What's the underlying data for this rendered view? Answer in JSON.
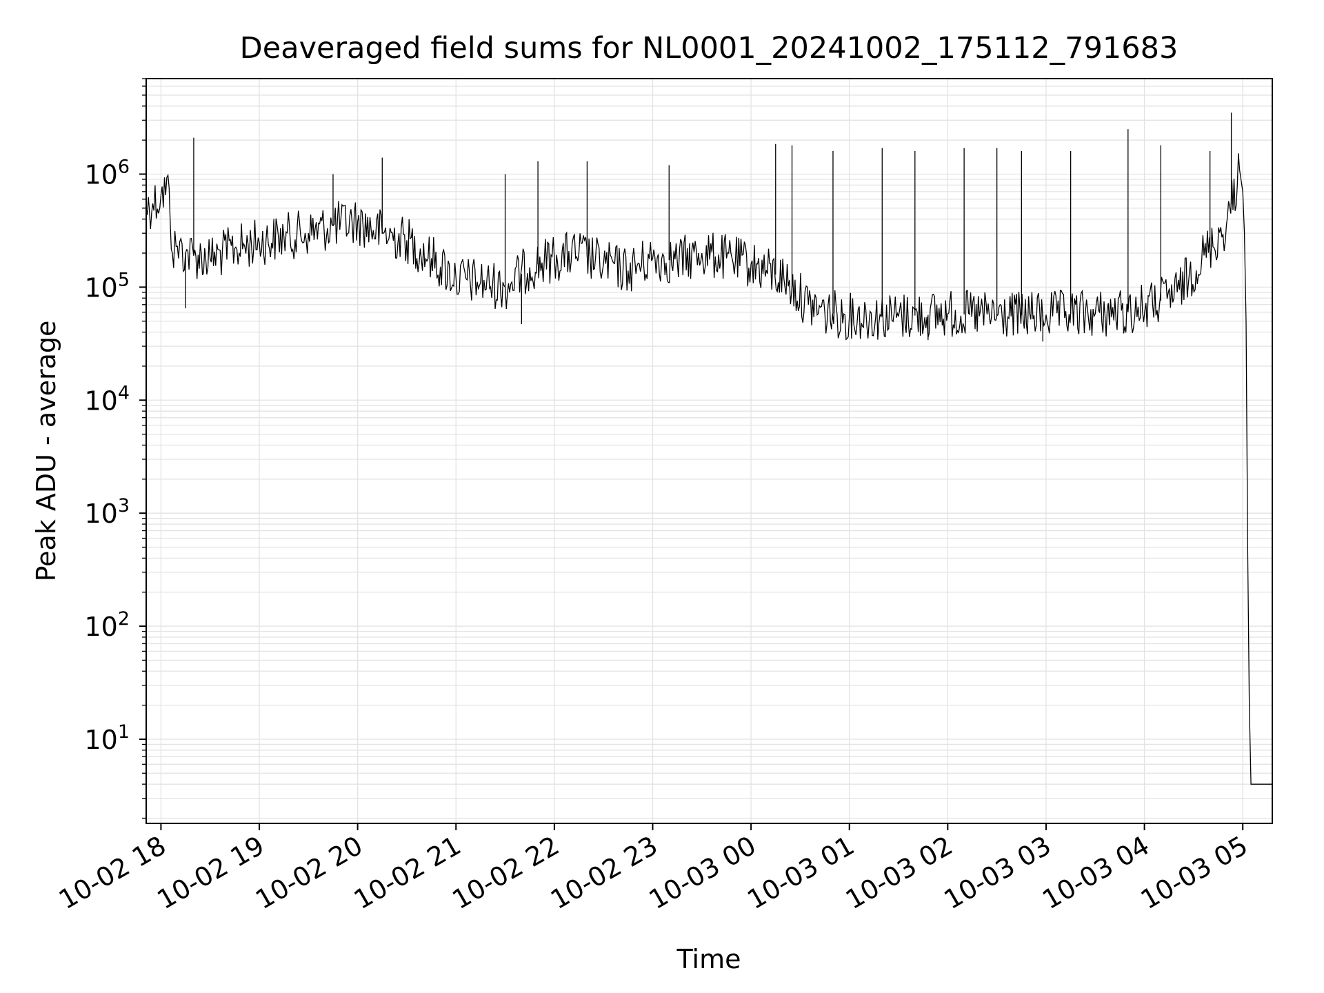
{
  "chart_data": {
    "type": "line",
    "title": "Deaveraged field sums for NL0001_20241002_175112_791683",
    "xlabel": "Time",
    "ylabel": "Peak ADU - average",
    "yscale": "log",
    "ylim": [
      1.8,
      7000000
    ],
    "xlim": [
      "2024-10-02 17:51",
      "2024-10-03 05:18"
    ],
    "grid": true,
    "legend": "none",
    "line_color": "#000000",
    "x_ticks": [
      "10-02 18",
      "10-02 19",
      "10-02 20",
      "10-02 21",
      "10-02 22",
      "10-02 23",
      "10-03 00",
      "10-03 01",
      "10-03 02",
      "10-03 03",
      "10-03 04",
      "10-03 05"
    ],
    "y_ticks": [
      {
        "base": "10",
        "exp": "1",
        "value": 10
      },
      {
        "base": "10",
        "exp": "2",
        "value": 100
      },
      {
        "base": "10",
        "exp": "3",
        "value": 1000
      },
      {
        "base": "10",
        "exp": "4",
        "value": 10000
      },
      {
        "base": "10",
        "exp": "5",
        "value": 100000
      },
      {
        "base": "10",
        "exp": "6",
        "value": 1000000
      }
    ],
    "series": [
      {
        "x": [
          "2024-10-02 17:51",
          "2024-10-02 17:55",
          "2024-10-02 18:00",
          "2024-10-02 18:05",
          "2024-10-02 18:07",
          "2024-10-02 18:10",
          "2024-10-02 18:15",
          "2024-10-02 18:20",
          "2024-10-02 18:30",
          "2024-10-02 18:45",
          "2024-10-02 19:00",
          "2024-10-02 19:15",
          "2024-10-02 19:30",
          "2024-10-02 19:45",
          "2024-10-02 20:00",
          "2024-10-02 20:15",
          "2024-10-02 20:30",
          "2024-10-02 20:45",
          "2024-10-02 21:00",
          "2024-10-02 21:15",
          "2024-10-02 21:30",
          "2024-10-02 21:45",
          "2024-10-02 22:00",
          "2024-10-02 22:15",
          "2024-10-02 22:30",
          "2024-10-02 22:45",
          "2024-10-02 23:00",
          "2024-10-02 23:15",
          "2024-10-02 23:30",
          "2024-10-02 23:45",
          "2024-10-03 00:00",
          "2024-10-03 00:20",
          "2024-10-03 00:35",
          "2024-10-03 00:45",
          "2024-10-03 01:00",
          "2024-10-03 01:30",
          "2024-10-03 02:00",
          "2024-10-03 02:30",
          "2024-10-03 03:00",
          "2024-10-03 03:30",
          "2024-10-03 03:50",
          "2024-10-03 04:05",
          "2024-10-03 04:20",
          "2024-10-03 04:35",
          "2024-10-03 04:50",
          "2024-10-03 04:58",
          "2024-10-03 05:00",
          "2024-10-03 05:01",
          "2024-10-03 05:02",
          "2024-10-03 05:03",
          "2024-10-03 05:04",
          "2024-10-03 05:05",
          "2024-10-03 05:06",
          "2024-10-03 05:18"
        ],
        "y": [
          500000,
          550000,
          650000,
          750000,
          200000,
          230000,
          200000,
          190000,
          180000,
          220000,
          250000,
          280000,
          300000,
          350000,
          380000,
          300000,
          260000,
          180000,
          120000,
          110000,
          100000,
          150000,
          180000,
          200000,
          160000,
          140000,
          180000,
          170000,
          200000,
          180000,
          160000,
          120000,
          70000,
          60000,
          55000,
          55000,
          58000,
          56000,
          57000,
          58000,
          60000,
          70000,
          90000,
          180000,
          350000,
          1100000,
          700000,
          300000,
          50000,
          500,
          20,
          4,
          4,
          4
        ],
        "spikes": [
          {
            "x": "2024-10-02 18:20",
            "y": 2100000
          },
          {
            "x": "2024-10-02 19:45",
            "y": 1000000
          },
          {
            "x": "2024-10-02 20:15",
            "y": 1400000
          },
          {
            "x": "2024-10-02 21:30",
            "y": 1000000
          },
          {
            "x": "2024-10-02 21:50",
            "y": 1300000
          },
          {
            "x": "2024-10-02 22:20",
            "y": 1300000
          },
          {
            "x": "2024-10-02 23:10",
            "y": 1200000
          },
          {
            "x": "2024-10-03 00:15",
            "y": 1850000
          },
          {
            "x": "2024-10-03 00:25",
            "y": 1800000
          },
          {
            "x": "2024-10-03 00:50",
            "y": 1600000
          },
          {
            "x": "2024-10-03 01:20",
            "y": 1700000
          },
          {
            "x": "2024-10-03 01:40",
            "y": 1600000
          },
          {
            "x": "2024-10-03 02:10",
            "y": 1700000
          },
          {
            "x": "2024-10-03 02:30",
            "y": 1700000
          },
          {
            "x": "2024-10-03 02:45",
            "y": 1600000
          },
          {
            "x": "2024-10-03 03:15",
            "y": 1600000
          },
          {
            "x": "2024-10-03 03:50",
            "y": 2500000
          },
          {
            "x": "2024-10-03 04:10",
            "y": 1800000
          },
          {
            "x": "2024-10-03 04:40",
            "y": 1600000
          },
          {
            "x": "2024-10-03 04:53",
            "y": 3500000
          }
        ],
        "dips": [
          {
            "x": "2024-10-02 18:15",
            "y": 65000
          },
          {
            "x": "2024-10-02 21:40",
            "y": 47000
          },
          {
            "x": "2024-10-03 01:48",
            "y": 34000
          },
          {
            "x": "2024-10-03 02:58",
            "y": 33000
          }
        ]
      }
    ]
  }
}
